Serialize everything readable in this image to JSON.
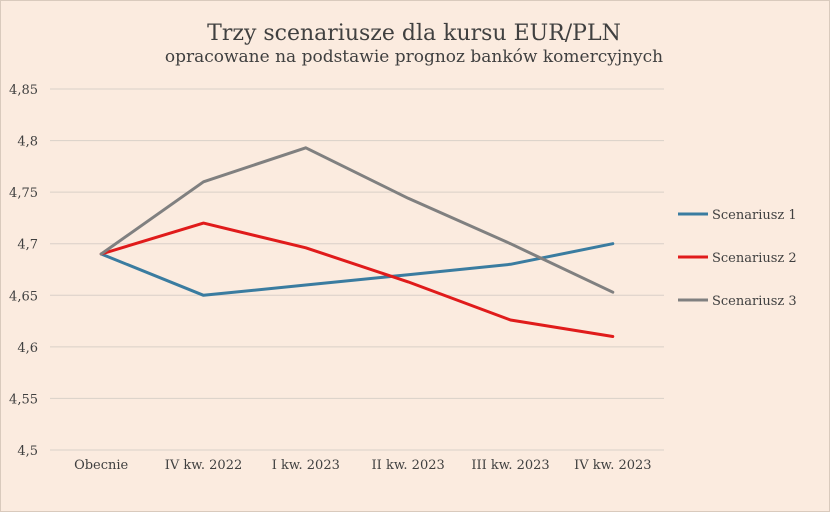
{
  "chart_data": {
    "type": "line",
    "title": "Trzy scenariusze dla kursu EUR/PLN",
    "subtitle": "opracowane na podstawie prognoz banków komercyjnych",
    "xlabel": "",
    "ylabel": "",
    "categories": [
      "Obecnie",
      "IV kw. 2022",
      "I kw. 2023",
      "II kw. 2023",
      "III kw. 2023",
      "IV kw. 2023"
    ],
    "ylim": [
      4.5,
      4.85
    ],
    "yticks": [
      4.5,
      4.55,
      4.6,
      4.65,
      4.7,
      4.75,
      4.8,
      4.85
    ],
    "ytick_labels": [
      "4,5",
      "4,55",
      "4,6",
      "4,65",
      "4,7",
      "4,75",
      "4,8",
      "4,85"
    ],
    "grid": true,
    "legend": "right",
    "series": [
      {
        "name": "Scenariusz 1",
        "color": "#3a7ca0",
        "values": [
          4.69,
          4.65,
          4.66,
          4.67,
          4.68,
          4.7
        ]
      },
      {
        "name": "Scenariusz 2",
        "color": "#e01b1b",
        "values": [
          4.69,
          4.72,
          4.696,
          4.663,
          4.626,
          4.61
        ]
      },
      {
        "name": "Scenariusz 3",
        "color": "#808080",
        "values": [
          4.69,
          4.76,
          4.793,
          4.744,
          4.7,
          4.653
        ]
      }
    ]
  }
}
